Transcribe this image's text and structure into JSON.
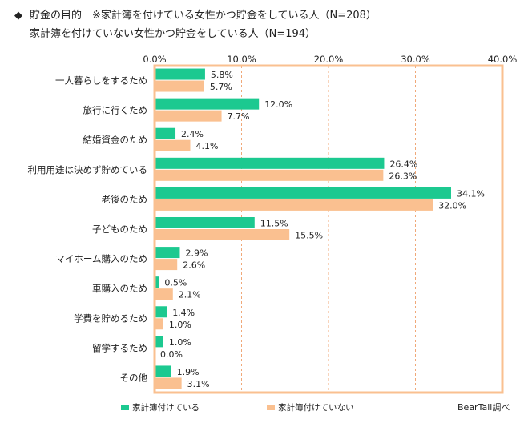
{
  "heading": {
    "bullet": "◆",
    "line1": "貯金の目的　※家計簿を付けている女性かつ貯金をしている人（N=208）",
    "line2": "家計簿を付けていない女性かつ貯金をしている人（N=194）"
  },
  "colors": {
    "series1": "#1cc990",
    "series2": "#fac090",
    "frame": "#fac090",
    "grid": "#f0a878"
  },
  "chart_data": {
    "type": "bar",
    "orientation": "horizontal",
    "xlim": [
      0,
      40
    ],
    "ticks": [
      "0.0%",
      "10.0%",
      "20.0%",
      "30.0%",
      "40.0%"
    ],
    "tick_values": [
      0,
      10,
      20,
      30,
      40
    ],
    "grid": true,
    "legend_position": "bottom",
    "categories": [
      "一人暮らしをするため",
      "旅行に行くため",
      "結婚資金のため",
      "利用用途は決めず貯めている",
      "老後のため",
      "子どものため",
      "マイホーム購入のため",
      "車購入のため",
      "学費を貯めるため",
      "留学するため",
      "その他"
    ],
    "series": [
      {
        "name": "家計簿付けている",
        "values": [
          5.8,
          12.0,
          2.4,
          26.4,
          34.1,
          11.5,
          2.9,
          0.5,
          1.4,
          1.0,
          1.9
        ],
        "labels": [
          "5.8%",
          "12.0%",
          "2.4%",
          "26.4%",
          "34.1%",
          "11.5%",
          "2.9%",
          "0.5%",
          "1.4%",
          "1.0%",
          "1.9%"
        ]
      },
      {
        "name": "家計簿付けていない",
        "values": [
          5.7,
          7.7,
          4.1,
          26.3,
          32.0,
          15.5,
          2.6,
          2.1,
          1.0,
          0.0,
          3.1
        ],
        "labels": [
          "5.7%",
          "7.7%",
          "4.1%",
          "26.3%",
          "32.0%",
          "15.5%",
          "2.6%",
          "2.1%",
          "1.0%",
          "0.0%",
          "3.1%"
        ]
      }
    ]
  },
  "source": "BearTail調べ"
}
